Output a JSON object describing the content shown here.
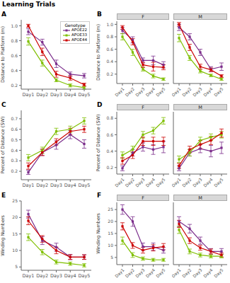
{
  "title": "Learning Trials",
  "chart_data": [
    {
      "type": "line",
      "annotations": [
        "A"
      ],
      "ylabel": "Distance to Platform (m)",
      "categories": [
        "Day1",
        "Day2",
        "Day3",
        "Day4",
        "Day5"
      ],
      "ylim": [
        0.15,
        1.08
      ],
      "yticks": [
        0.2,
        0.4,
        0.6,
        0.8,
        {
          "value": 1,
          "label": "1.0"
        }
      ],
      "grid": false,
      "marker": "square",
      "legend": "upper right",
      "legend_title": "Genotype",
      "series": [
        {
          "name": "APOE22",
          "color": "#7B2D8B",
          "values": [
            0.92,
            0.78,
            0.49,
            0.35,
            0.33
          ],
          "errors": [
            0.04,
            0.04,
            0.05,
            0.03,
            0.03
          ]
        },
        {
          "name": "APOE33",
          "color": "#7FBF00",
          "values": [
            0.79,
            0.5,
            0.27,
            0.2,
            0.17
          ],
          "errors": [
            0.05,
            0.04,
            0.02,
            0.02,
            0.02
          ]
        },
        {
          "name": "APOE44",
          "color": "#CC0000",
          "values": [
            1.0,
            0.65,
            0.35,
            0.3,
            0.21
          ],
          "errors": [
            0.02,
            0.05,
            0.04,
            0.03,
            0.02
          ]
        }
      ]
    },
    {
      "type": "line",
      "annotations": [
        "B"
      ],
      "title": "F",
      "ylabel": "Distance to Platform (m)",
      "categories": [
        "Day1",
        "Day2",
        "Day3",
        "Day4",
        "Day5"
      ],
      "ylim": [
        0.05,
        1.05
      ],
      "yticks": [
        0.2,
        0.4,
        0.6,
        0.8,
        {
          "value": 1,
          "label": "1.0"
        }
      ],
      "grid": false,
      "marker": "square",
      "series": [
        {
          "name": "APOE22",
          "color": "#7B2D8B",
          "values": [
            0.9,
            0.75,
            0.42,
            0.42,
            0.35
          ],
          "errors": [
            0.05,
            0.05,
            0.04,
            0.07,
            0.05
          ]
        },
        {
          "name": "APOE33",
          "color": "#7FBF00",
          "values": [
            0.8,
            0.55,
            0.28,
            0.17,
            0.12
          ],
          "errors": [
            0.05,
            0.05,
            0.03,
            0.03,
            0.02
          ]
        },
        {
          "name": "APOE44",
          "color": "#CC0000",
          "values": [
            0.95,
            0.72,
            0.35,
            0.32,
            0.31
          ],
          "errors": [
            0.03,
            0.05,
            0.04,
            0.07,
            0.04
          ]
        }
      ]
    },
    {
      "type": "line",
      "title": "M",
      "categories": [
        "Day1",
        "Day2",
        "Day3",
        "Day4",
        "Day5"
      ],
      "ylim": [
        0.05,
        1.05
      ],
      "yticks": [
        0.2,
        0.4,
        0.6,
        0.8,
        {
          "value": 1,
          "label": "1.0"
        }
      ],
      "tick_labels": "x",
      "grid": false,
      "marker": "square",
      "series": [
        {
          "name": "APOE22",
          "color": "#7B2D8B",
          "values": [
            0.95,
            0.8,
            0.55,
            0.28,
            0.32
          ],
          "errors": [
            0.05,
            0.05,
            0.05,
            0.04,
            0.06
          ]
        },
        {
          "name": "APOE33",
          "color": "#7FBF00",
          "values": [
            0.78,
            0.46,
            0.25,
            0.18,
            0.12
          ],
          "errors": [
            0.06,
            0.04,
            0.03,
            0.02,
            0.02
          ]
        },
        {
          "name": "APOE44",
          "color": "#CC0000",
          "values": [
            1.0,
            0.63,
            0.32,
            0.27,
            0.17
          ],
          "errors": [
            0.03,
            0.05,
            0.04,
            0.03,
            0.02
          ]
        }
      ]
    },
    {
      "type": "line",
      "annotations": [
        "C"
      ],
      "ylabel": "Percent of Distance (SW)",
      "categories": [
        "Day1",
        "Day2",
        "Day3",
        "Day4",
        "Day5"
      ],
      "ylim": [
        0.12,
        0.78
      ],
      "yticks": [
        0.2,
        0.3,
        0.4,
        0.5,
        0.6,
        0.7
      ],
      "grid": false,
      "marker": "square",
      "series": [
        {
          "name": "APOE22",
          "color": "#7B2D8B",
          "values": [
            0.19,
            0.38,
            0.45,
            0.55,
            0.46
          ],
          "errors": [
            0.02,
            0.03,
            0.04,
            0.04,
            0.04
          ]
        },
        {
          "name": "APOE33",
          "color": "#7FBF00",
          "values": [
            0.33,
            0.4,
            0.58,
            0.6,
            0.68
          ],
          "errors": [
            0.03,
            0.03,
            0.03,
            0.03,
            0.03
          ]
        },
        {
          "name": "APOE44",
          "color": "#CC0000",
          "values": [
            0.25,
            0.38,
            0.48,
            0.58,
            0.6
          ],
          "errors": [
            0.03,
            0.03,
            0.03,
            0.03,
            0.03
          ]
        }
      ]
    },
    {
      "type": "line",
      "annotations": [
        "D"
      ],
      "title": "F",
      "ylabel": "Percent of Distance (SW)",
      "categories": [
        "Day1",
        "Day2",
        "Day3",
        "Day4",
        "Day5"
      ],
      "ylim": [
        0.12,
        0.88
      ],
      "yticks": [
        0.2,
        0.4,
        0.6,
        0.8
      ],
      "grid": false,
      "marker": "square",
      "series": [
        {
          "name": "APOE22",
          "color": "#7B2D8B",
          "values": [
            0.19,
            0.38,
            0.45,
            0.42,
            0.45
          ],
          "errors": [
            0.03,
            0.04,
            0.05,
            0.06,
            0.07
          ]
        },
        {
          "name": "APOE33",
          "color": "#7FBF00",
          "values": [
            0.35,
            0.42,
            0.6,
            0.65,
            0.77
          ],
          "errors": [
            0.04,
            0.04,
            0.04,
            0.04,
            0.04
          ]
        },
        {
          "name": "APOE44",
          "color": "#CC0000",
          "values": [
            0.28,
            0.35,
            0.52,
            0.52,
            0.52
          ],
          "errors": [
            0.04,
            0.04,
            0.05,
            0.05,
            0.05
          ]
        }
      ]
    },
    {
      "type": "line",
      "title": "M",
      "categories": [
        "Day1",
        "Day2",
        "Day3",
        "Day4",
        "Day5"
      ],
      "ylim": [
        0.12,
        0.88
      ],
      "yticks": [
        0.2,
        0.4,
        0.6,
        0.8
      ],
      "tick_labels": "x",
      "grid": false,
      "marker": "square",
      "series": [
        {
          "name": "APOE22",
          "color": "#7B2D8B",
          "values": [
            0.19,
            0.38,
            0.43,
            0.4,
            0.44
          ],
          "errors": [
            0.03,
            0.04,
            0.05,
            0.07,
            0.07
          ]
        },
        {
          "name": "APOE33",
          "color": "#7FBF00",
          "values": [
            0.3,
            0.38,
            0.53,
            0.57,
            0.6
          ],
          "errors": [
            0.04,
            0.04,
            0.04,
            0.04,
            0.04
          ]
        },
        {
          "name": "APOE44",
          "color": "#CC0000",
          "values": [
            0.22,
            0.42,
            0.48,
            0.53,
            0.62
          ],
          "errors": [
            0.03,
            0.04,
            0.05,
            0.05,
            0.05
          ]
        }
      ]
    },
    {
      "type": "line",
      "annotations": [
        "E"
      ],
      "ylabel": "Winding Numbers",
      "categories": [
        "Day1",
        "Day2",
        "Day3",
        "Day4",
        "Day5"
      ],
      "ylim": [
        4,
        25
      ],
      "yticks": [
        5,
        10,
        15,
        20,
        25
      ],
      "grid": false,
      "marker": "square",
      "series": [
        {
          "name": "APOE22",
          "color": "#7B2D8B",
          "values": [
            21.0,
            13.0,
            11.0,
            8.0,
            8.0
          ],
          "errors": [
            1.2,
            1.2,
            1.2,
            0.8,
            0.7
          ]
        },
        {
          "name": "APOE33",
          "color": "#7FBF00",
          "values": [
            14.0,
            9.5,
            6.5,
            6.0,
            5.5
          ],
          "errors": [
            1.0,
            0.8,
            0.6,
            0.5,
            0.5
          ]
        },
        {
          "name": "APOE44",
          "color": "#CC0000",
          "values": [
            19.0,
            13.5,
            10.0,
            8.0,
            8.0
          ],
          "errors": [
            1.2,
            1.0,
            1.0,
            0.7,
            0.7
          ]
        }
      ]
    },
    {
      "type": "line",
      "annotations": [
        "F"
      ],
      "title": "F",
      "ylabel": "Winding Numbers",
      "categories": [
        "Day1",
        "Day2",
        "Day3",
        "Day4",
        "Day5"
      ],
      "ylim": [
        2,
        28
      ],
      "yticks": [
        5,
        10,
        15,
        20,
        25
      ],
      "grid": false,
      "marker": "square",
      "series": [
        {
          "name": "APOE22",
          "color": "#7B2D8B",
          "values": [
            25.0,
            20.0,
            9.5,
            9.5,
            8.0
          ],
          "errors": [
            2.0,
            2.0,
            1.5,
            1.5,
            1.2
          ]
        },
        {
          "name": "APOE33",
          "color": "#7FBF00",
          "values": [
            12.0,
            6.0,
            4.5,
            4.0,
            4.0
          ],
          "errors": [
            1.5,
            1.0,
            0.7,
            0.6,
            0.6
          ]
        },
        {
          "name": "APOE44",
          "color": "#CC0000",
          "values": [
            18.0,
            10.0,
            8.0,
            9.0,
            9.5
          ],
          "errors": [
            1.5,
            1.2,
            1.2,
            1.3,
            1.3
          ]
        }
      ]
    },
    {
      "type": "line",
      "title": "M",
      "categories": [
        "Day1",
        "Day2",
        "Day3",
        "Day4",
        "Day5"
      ],
      "ylim": [
        2,
        28
      ],
      "yticks": [
        5,
        10,
        15,
        20,
        25
      ],
      "tick_labels": "x",
      "grid": false,
      "marker": "square",
      "series": [
        {
          "name": "APOE22",
          "color": "#7B2D8B",
          "values": [
            20.0,
            17.0,
            12.0,
            7.5,
            7.5
          ],
          "errors": [
            2.0,
            1.8,
            1.5,
            1.2,
            1.2
          ]
        },
        {
          "name": "APOE33",
          "color": "#7FBF00",
          "values": [
            16.5,
            7.5,
            6.0,
            5.5,
            5.5
          ],
          "errors": [
            1.5,
            1.0,
            0.8,
            0.7,
            0.7
          ]
        },
        {
          "name": "APOE44",
          "color": "#CC0000",
          "values": [
            19.0,
            12.0,
            9.0,
            7.5,
            6.0
          ],
          "errors": [
            1.5,
            1.2,
            1.0,
            1.0,
            0.8
          ]
        }
      ]
    }
  ]
}
